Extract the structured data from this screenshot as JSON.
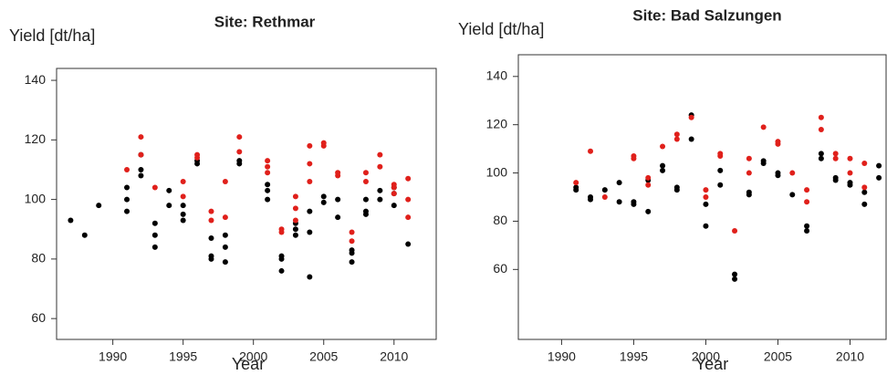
{
  "chart_data": [
    {
      "type": "scatter",
      "title": "Site: Rethmar",
      "y_label": "Yield [dt/ha]",
      "x_label": "Year",
      "xlim": [
        1986,
        2013
      ],
      "xticks": [
        1990,
        1995,
        2000,
        2005,
        2010
      ],
      "ylim": [
        53,
        144
      ],
      "yticks": [
        60,
        80,
        100,
        120,
        140
      ],
      "series": [
        {
          "color": "#000000",
          "x": [
            1987,
            1988,
            1989,
            1991,
            1991,
            1991,
            1992,
            1992,
            1992,
            1993,
            1993,
            1993,
            1994,
            1994,
            1995,
            1995,
            1995,
            1996,
            1996,
            1997,
            1997,
            1997,
            1998,
            1998,
            1998,
            1999,
            1999,
            2001,
            2001,
            2001,
            2002,
            2002,
            2002,
            2003,
            2003,
            2003,
            2004,
            2004,
            2004,
            2005,
            2005,
            2006,
            2006,
            2007,
            2007,
            2007,
            2008,
            2008,
            2008,
            2009,
            2009,
            2010,
            2010,
            2010,
            2011
          ],
          "values": [
            93,
            88,
            98,
            96,
            100,
            104,
            108,
            110,
            115,
            84,
            88,
            92,
            98,
            103,
            93,
            95,
            98,
            112,
            113,
            80,
            81,
            87,
            79,
            84,
            88,
            112,
            113,
            100,
            103,
            105,
            76,
            80,
            81,
            88,
            90,
            92,
            74,
            89,
            96,
            99,
            101,
            94,
            100,
            79,
            82,
            83,
            95,
            96,
            100,
            100,
            103,
            98,
            102,
            104,
            85
          ]
        },
        {
          "color": "#e0201b",
          "x": [
            1991,
            1992,
            1992,
            1993,
            1995,
            1995,
            1996,
            1996,
            1997,
            1997,
            1998,
            1998,
            1999,
            1999,
            2001,
            2001,
            2001,
            2002,
            2002,
            2003,
            2003,
            2003,
            2004,
            2004,
            2004,
            2005,
            2005,
            2006,
            2006,
            2007,
            2007,
            2008,
            2008,
            2009,
            2009,
            2010,
            2010,
            2010,
            2011,
            2011,
            2011
          ],
          "values": [
            110,
            121,
            115,
            104,
            101,
            106,
            114,
            115,
            93,
            96,
            94,
            106,
            116,
            121,
            109,
            111,
            113,
            89,
            90,
            93,
            97,
            101,
            106,
            112,
            118,
            118,
            119,
            108,
            109,
            86,
            89,
            106,
            109,
            111,
            115,
            102,
            104,
            105,
            94,
            100,
            107
          ]
        }
      ]
    },
    {
      "type": "scatter",
      "title": "Site: Bad Salzungen",
      "y_label": "Yield [dt/ha]",
      "x_label": "Year",
      "xlim": [
        1987,
        2012.5
      ],
      "xticks": [
        1990,
        1995,
        2000,
        2005,
        2010
      ],
      "ylim": [
        31,
        149
      ],
      "yticks": [
        60,
        80,
        100,
        120,
        140
      ],
      "series": [
        {
          "color": "#000000",
          "x": [
            1991,
            1991,
            1992,
            1992,
            1993,
            1994,
            1994,
            1995,
            1995,
            1996,
            1996,
            1997,
            1997,
            1998,
            1998,
            1999,
            1999,
            2000,
            2000,
            2001,
            2001,
            2002,
            2002,
            2003,
            2003,
            2004,
            2004,
            2005,
            2005,
            2006,
            2007,
            2007,
            2008,
            2008,
            2009,
            2009,
            2010,
            2010,
            2011,
            2011,
            2012,
            2012
          ],
          "values": [
            93,
            94,
            89,
            90,
            93,
            88,
            96,
            87,
            88,
            84,
            97,
            101,
            103,
            93,
            94,
            114,
            124,
            78,
            87,
            95,
            101,
            56,
            58,
            91,
            92,
            104,
            105,
            99,
            100,
            91,
            76,
            78,
            106,
            108,
            97,
            98,
            95,
            96,
            87,
            92,
            98,
            103
          ]
        },
        {
          "color": "#e0201b",
          "x": [
            1991,
            1992,
            1993,
            1995,
            1995,
            1996,
            1996,
            1997,
            1998,
            1998,
            1999,
            2000,
            2000,
            2001,
            2001,
            2002,
            2003,
            2003,
            2004,
            2005,
            2005,
            2006,
            2007,
            2007,
            2008,
            2008,
            2009,
            2009,
            2010,
            2010,
            2011,
            2011
          ],
          "values": [
            96,
            109,
            90,
            106,
            107,
            95,
            98,
            111,
            114,
            116,
            123,
            90,
            93,
            107,
            108,
            76,
            100,
            106,
            119,
            112,
            113,
            100,
            88,
            93,
            118,
            123,
            106,
            108,
            100,
            106,
            94,
            104
          ]
        }
      ]
    }
  ]
}
